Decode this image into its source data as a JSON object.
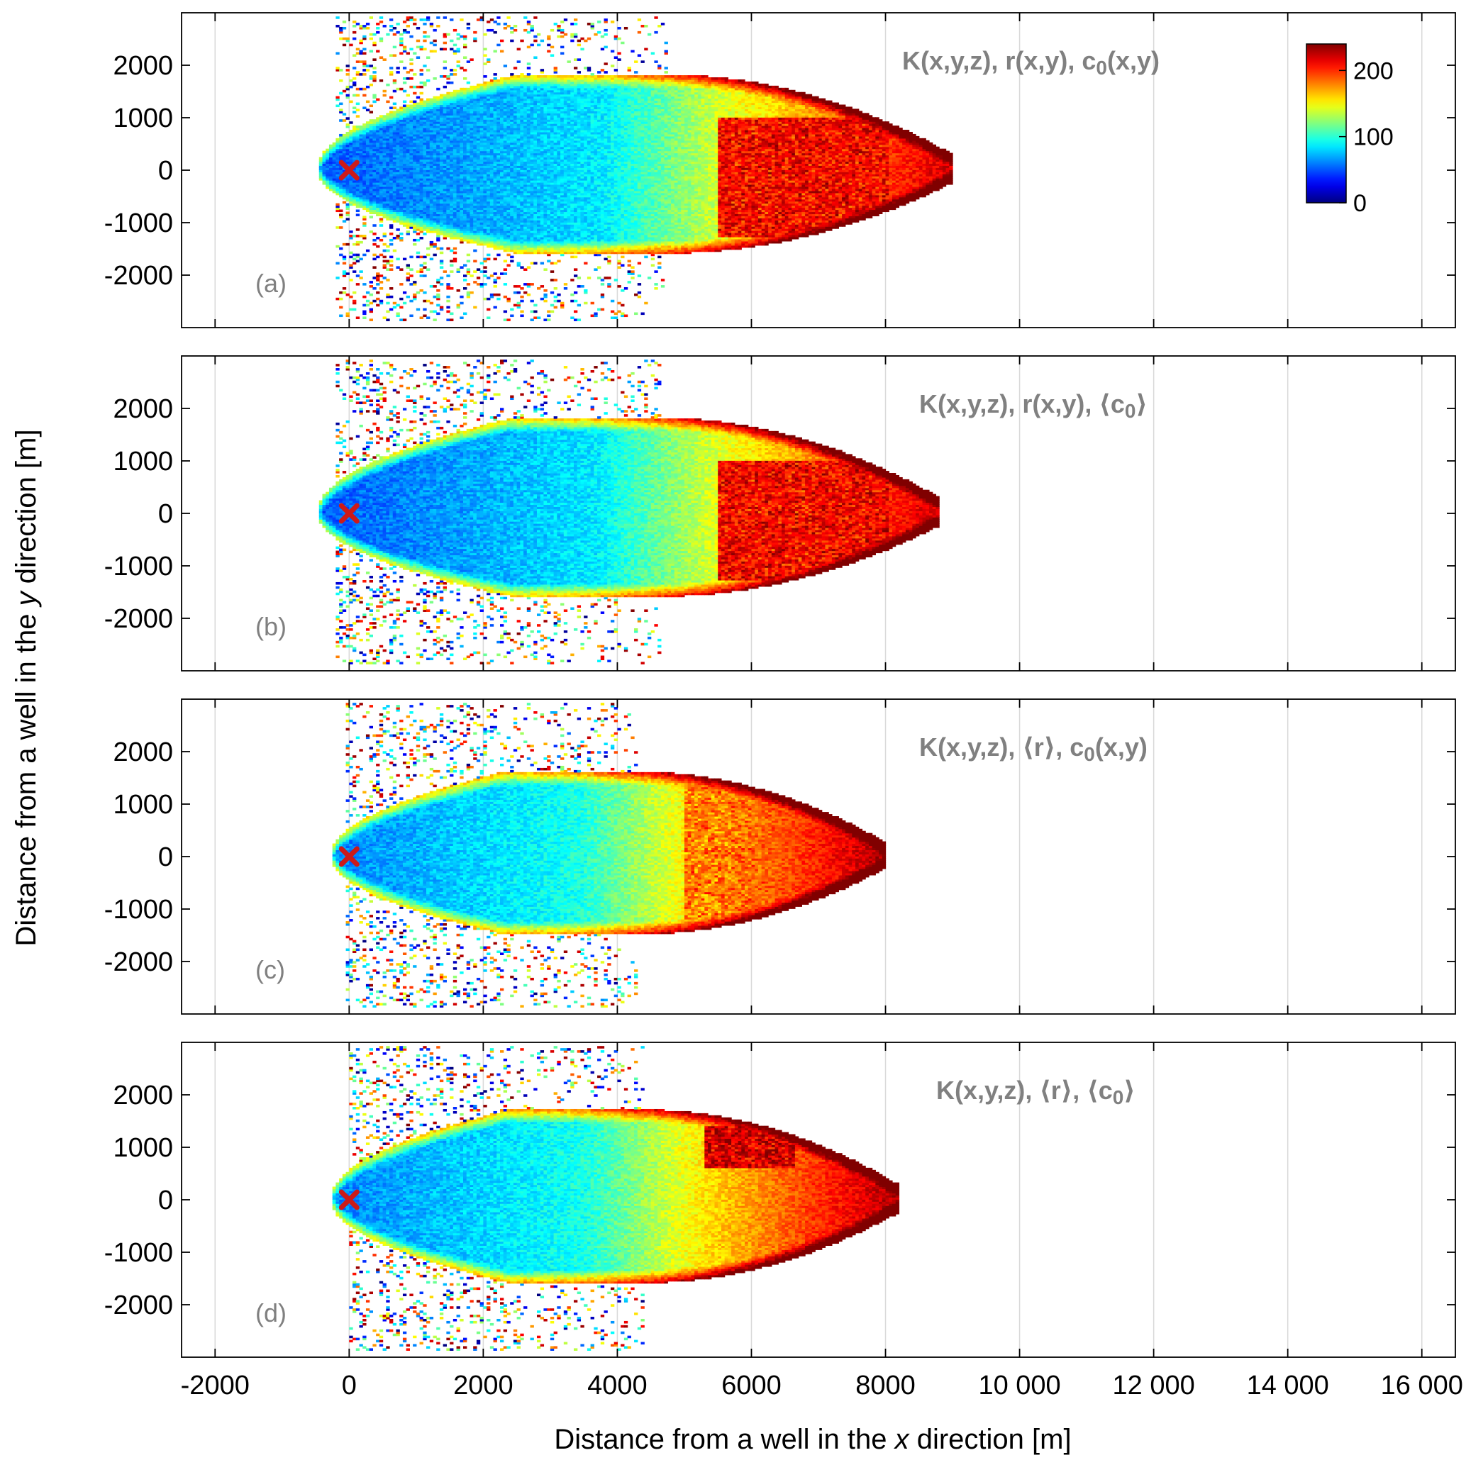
{
  "chart_data": {
    "type": "heatmap",
    "xlabel": {
      "before": "Distance from a well in the ",
      "var": "x",
      "after": " direction [m]"
    },
    "ylabel": {
      "before": "Distance from a well in the ",
      "var": "y",
      "after": " direction [m]"
    },
    "xlim": [
      -2500,
      16500
    ],
    "ylim": [
      -3000,
      3000
    ],
    "x_ticks": [
      -2000,
      0,
      2000,
      4000,
      6000,
      8000,
      10000,
      12000,
      14000,
      16000
    ],
    "x_tick_labels": [
      "-2000",
      "0",
      "2000",
      "4000",
      "6000",
      "8000",
      "10 000",
      "12 000",
      "14 000",
      "16 000"
    ],
    "y_ticks": [
      2000,
      1000,
      0,
      -1000,
      -2000
    ],
    "y_tick_labels": [
      "2000",
      "1000",
      "0",
      "-1000",
      "-2000"
    ],
    "grid": "vertical lines at x ticks",
    "well_location": {
      "x": 0,
      "y": 0,
      "marker": "x",
      "color": "#cc1a1a"
    },
    "colorbar": {
      "range": [
        0,
        240
      ],
      "ticks": [
        0,
        100,
        200
      ],
      "tick_labels": [
        "0",
        "100",
        "200"
      ],
      "colormap": "jet",
      "placement": "top-right of panel (a)"
    },
    "panels": [
      {
        "tag": "(a)",
        "title": [
          {
            "t": "K(x,y,z), r(x,y), c"
          },
          {
            "t": "0",
            "sub": true
          },
          {
            "t": "(x,y)"
          }
        ],
        "plume_x_extent": [
          -500,
          9000
        ],
        "core_y_extent": [
          -1600,
          1800
        ],
        "high_value_zone": {
          "x": [
            5500,
            8000
          ],
          "y": [
            -1300,
            1000
          ],
          "approx_value": 230
        },
        "near_well_value": 50,
        "mid_plume_value": 100
      },
      {
        "tag": "(b)",
        "title": [
          {
            "t": "K(x,y,z), r(x,y), ⟨c"
          },
          {
            "t": "0",
            "sub": true
          },
          {
            "t": "⟩"
          }
        ],
        "plume_x_extent": [
          -500,
          8800
        ],
        "core_y_extent": [
          -1600,
          1800
        ],
        "high_value_zone": {
          "x": [
            5500,
            8000
          ],
          "y": [
            -1300,
            1000
          ],
          "approx_value": 230
        },
        "near_well_value": 50,
        "mid_plume_value": 100
      },
      {
        "tag": "(c)",
        "title": [
          {
            "t": "K(x,y,z), ⟨r⟩, c"
          },
          {
            "t": "0",
            "sub": true
          },
          {
            "t": "(x,y)"
          }
        ],
        "plume_x_extent": [
          -300,
          8000
        ],
        "core_y_extent": [
          -1500,
          1600
        ],
        "high_value_zone": {
          "x": [
            5000,
            6500
          ],
          "y": [
            -1200,
            1600
          ],
          "approx_value": 200
        },
        "near_well_value": 60,
        "mid_plume_value": 110
      },
      {
        "tag": "(d)",
        "title": [
          {
            "t": "K(x,y,z), ⟨r⟩, ⟨c"
          },
          {
            "t": "0",
            "sub": true
          },
          {
            "t": "⟩"
          }
        ],
        "plume_x_extent": [
          -300,
          8200
        ],
        "core_y_extent": [
          -1600,
          1700
        ],
        "high_value_zone": {
          "x": [
            5300,
            6600
          ],
          "y": [
            600,
            1400
          ],
          "approx_value": 240
        },
        "near_well_value": 60,
        "mid_plume_value": 110
      }
    ]
  }
}
